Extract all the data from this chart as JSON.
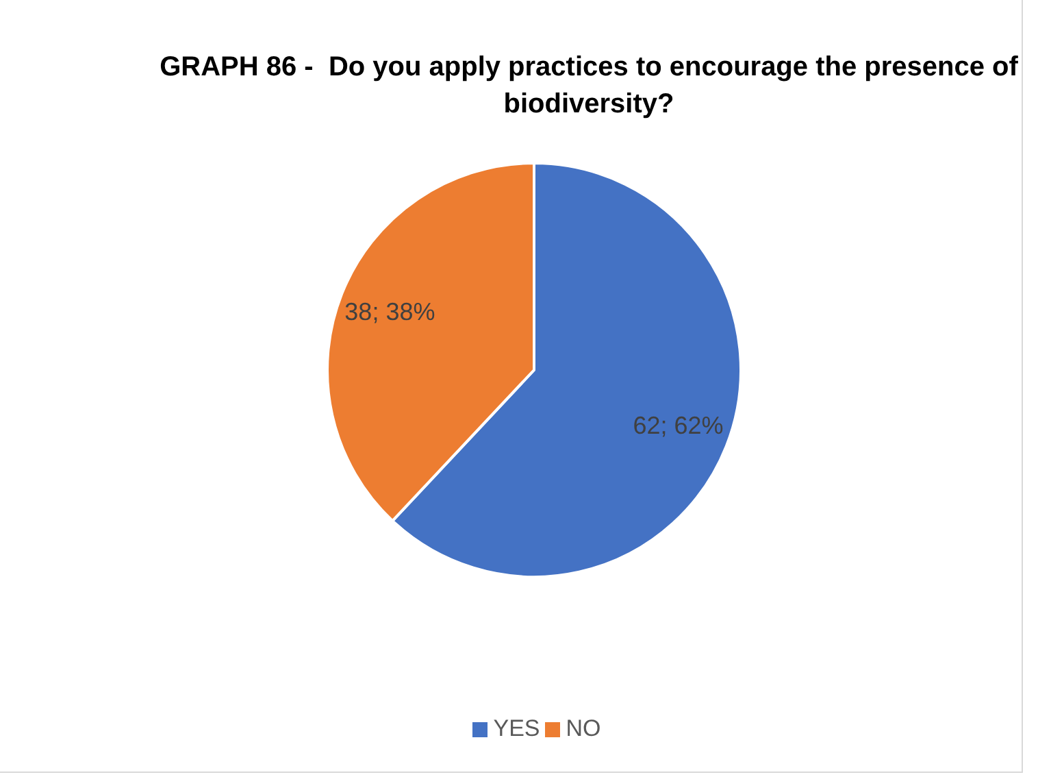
{
  "chart_data": {
    "type": "pie",
    "title": "GRAPH 86 -  Do you apply practices to encourage the presence of biodiversity?",
    "categories": [
      "YES",
      "NO"
    ],
    "values": [
      62,
      38
    ],
    "colors": [
      "#4472c4",
      "#ed7d31"
    ],
    "value_labels": [
      "62; 62%",
      "38; 38%"
    ],
    "legend": "bottom"
  }
}
